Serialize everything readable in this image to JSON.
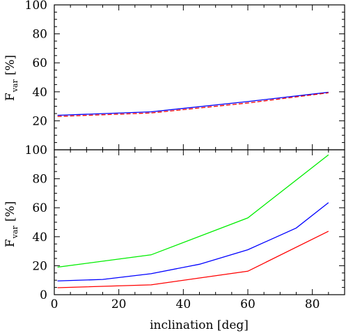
{
  "chart_data": [
    {
      "type": "line",
      "panel": "top",
      "ylabel": "F",
      "ylabel_subscript": "var",
      "ylabel_unit": "[%]",
      "xlim": [
        0,
        90
      ],
      "ylim": [
        0,
        100
      ],
      "xticks": [
        0,
        20,
        40,
        60,
        80
      ],
      "yticks": [
        20,
        40,
        60,
        80,
        100
      ],
      "yticks_shown": [
        "20",
        "40",
        "60",
        "80",
        "100"
      ],
      "grid": false,
      "series": [
        {
          "color": "#0000ff",
          "dash": "solid",
          "x": [
            1,
            30,
            60,
            85
          ],
          "y": [
            23.8,
            26.2,
            33.3,
            39.7
          ]
        },
        {
          "color": "#ff0000",
          "dash": "dashed",
          "x": [
            1,
            30,
            60,
            85
          ],
          "y": [
            23.0,
            25.4,
            32.3,
            39.3
          ]
        }
      ]
    },
    {
      "type": "line",
      "panel": "bottom",
      "xlabel": "inclination [deg]",
      "ylabel": "F",
      "ylabel_subscript": "var",
      "ylabel_unit": "[%]",
      "xlim": [
        0,
        90
      ],
      "ylim": [
        0,
        100
      ],
      "xticks": [
        0,
        20,
        40,
        60,
        80
      ],
      "yticks": [
        0,
        20,
        40,
        60,
        80,
        100
      ],
      "yticks_shown": [
        "0",
        "20",
        "40",
        "60",
        "80",
        "100"
      ],
      "grid": false,
      "series": [
        {
          "color": "#00ee00",
          "dash": "solid",
          "x": [
            1,
            30,
            60,
            85
          ],
          "y": [
            19.0,
            27.5,
            53.0,
            96.5
          ]
        },
        {
          "color": "#0000ff",
          "dash": "solid",
          "x": [
            1,
            15,
            30,
            45,
            60,
            75,
            85
          ],
          "y": [
            9.5,
            10.5,
            14.5,
            21.0,
            31.0,
            46.0,
            63.5
          ]
        },
        {
          "color": "#ff0000",
          "dash": "solid",
          "x": [
            1,
            30,
            60,
            85
          ],
          "y": [
            4.8,
            6.8,
            16.2,
            43.8
          ]
        }
      ]
    }
  ]
}
